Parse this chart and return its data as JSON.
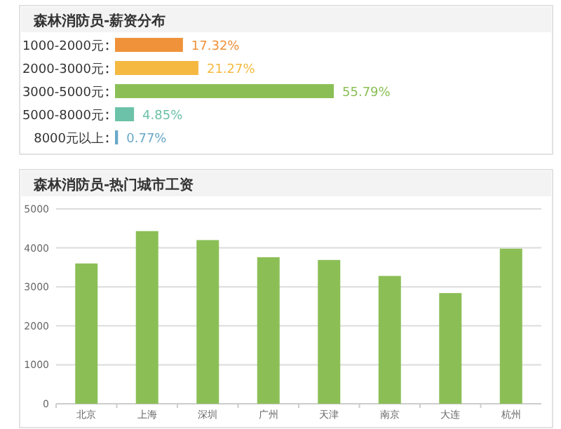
{
  "chart_data": [
    {
      "type": "bar",
      "orientation": "horizontal",
      "title": "森林消防员-薪资分布",
      "categories": [
        "1000-2000元",
        "2000-3000元",
        "3000-5000元",
        "5000-8000元",
        "8000元以上"
      ],
      "values": [
        17.32,
        21.27,
        55.79,
        4.85,
        0.77
      ],
      "colors": [
        "#f0923a",
        "#f5b942",
        "#8bbf56",
        "#6cc2a8",
        "#6aa8c8"
      ],
      "value_labels": [
        "17.32%",
        "21.27%",
        "55.79%",
        "4.85%",
        "0.77%"
      ]
    },
    {
      "type": "bar",
      "title": "森林消防员-热门城市工资",
      "categories": [
        "北京",
        "上海",
        "深圳",
        "广州",
        "天津",
        "南京",
        "大连",
        "杭州"
      ],
      "values": [
        3600,
        4430,
        4200,
        3760,
        3690,
        3280,
        2840,
        3980
      ],
      "color": "#8bbf56",
      "ylim": [
        0,
        5000
      ],
      "yticks": [
        0,
        1000,
        2000,
        3000,
        4000,
        5000
      ],
      "grid": "y"
    }
  ]
}
